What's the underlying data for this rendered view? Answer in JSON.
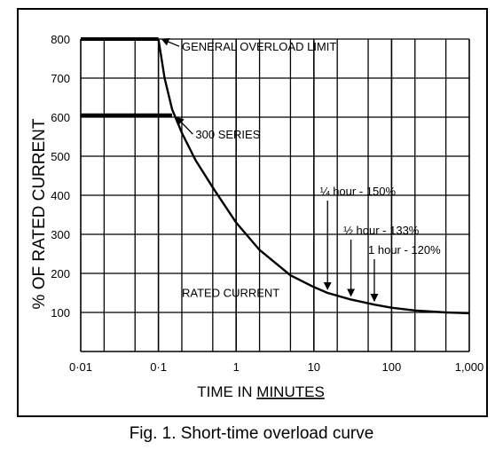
{
  "caption": "Fig. 1. Short-time overload curve",
  "chart_data": {
    "type": "line",
    "title": "",
    "xlabel": "TIME IN",
    "xlabel_underlined": "MINUTES",
    "ylabel": "% OF RATED CURRENT",
    "x_scale": "log",
    "xlim": [
      0.01,
      1000
    ],
    "ylim": [
      0,
      800
    ],
    "grid": true,
    "x_ticks": [
      {
        "value": 0.01,
        "label": "0·01"
      },
      {
        "value": 0.1,
        "label": "0·1"
      },
      {
        "value": 1,
        "label": "1"
      },
      {
        "value": 10,
        "label": "10"
      },
      {
        "value": 100,
        "label": "100"
      },
      {
        "value": 1000,
        "label": "1,000"
      }
    ],
    "y_ticks": [
      {
        "value": 100,
        "label": "100"
      },
      {
        "value": 200,
        "label": "200"
      },
      {
        "value": 300,
        "label": "300"
      },
      {
        "value": 400,
        "label": "400"
      },
      {
        "value": 500,
        "label": "500"
      },
      {
        "value": 600,
        "label": "600"
      },
      {
        "value": 700,
        "label": "700"
      },
      {
        "value": 800,
        "label": "800"
      }
    ],
    "series": [
      {
        "name": "GENERAL OVERLOAD LIMIT",
        "points": [
          [
            0.01,
            800
          ],
          [
            0.1,
            800
          ],
          [
            0.12,
            700
          ],
          [
            0.15,
            620
          ],
          [
            0.2,
            560
          ],
          [
            0.3,
            490
          ],
          [
            0.5,
            420
          ],
          [
            1,
            330
          ],
          [
            2,
            260
          ],
          [
            5,
            195
          ],
          [
            10,
            165
          ],
          [
            15,
            150
          ],
          [
            30,
            133
          ],
          [
            60,
            120
          ],
          [
            100,
            112
          ],
          [
            200,
            105
          ],
          [
            500,
            100
          ],
          [
            1000,
            98
          ]
        ]
      },
      {
        "name": "300 SERIES",
        "points": [
          [
            0.01,
            605
          ],
          [
            0.15,
            605
          ]
        ]
      }
    ],
    "annotations": [
      {
        "text": "GENERAL OVERLOAD LIMIT",
        "x": 0.2,
        "y": 770,
        "arrow_to": [
          0.11,
          800
        ]
      },
      {
        "text": "300 SERIES",
        "x": 0.3,
        "y": 545,
        "arrow_to": [
          0.17,
          600
        ]
      },
      {
        "text": "¼ hour - 150%",
        "x": 12,
        "y": 400,
        "arrow_to": [
          15,
          150
        ]
      },
      {
        "text": "½ hour - 133%",
        "x": 24,
        "y": 300,
        "arrow_to": [
          30,
          133
        ]
      },
      {
        "text": "1 hour - 120%",
        "x": 50,
        "y": 250,
        "arrow_to": [
          60,
          120
        ]
      },
      {
        "text": "RATED CURRENT",
        "x": 0.2,
        "y": 140
      }
    ]
  }
}
